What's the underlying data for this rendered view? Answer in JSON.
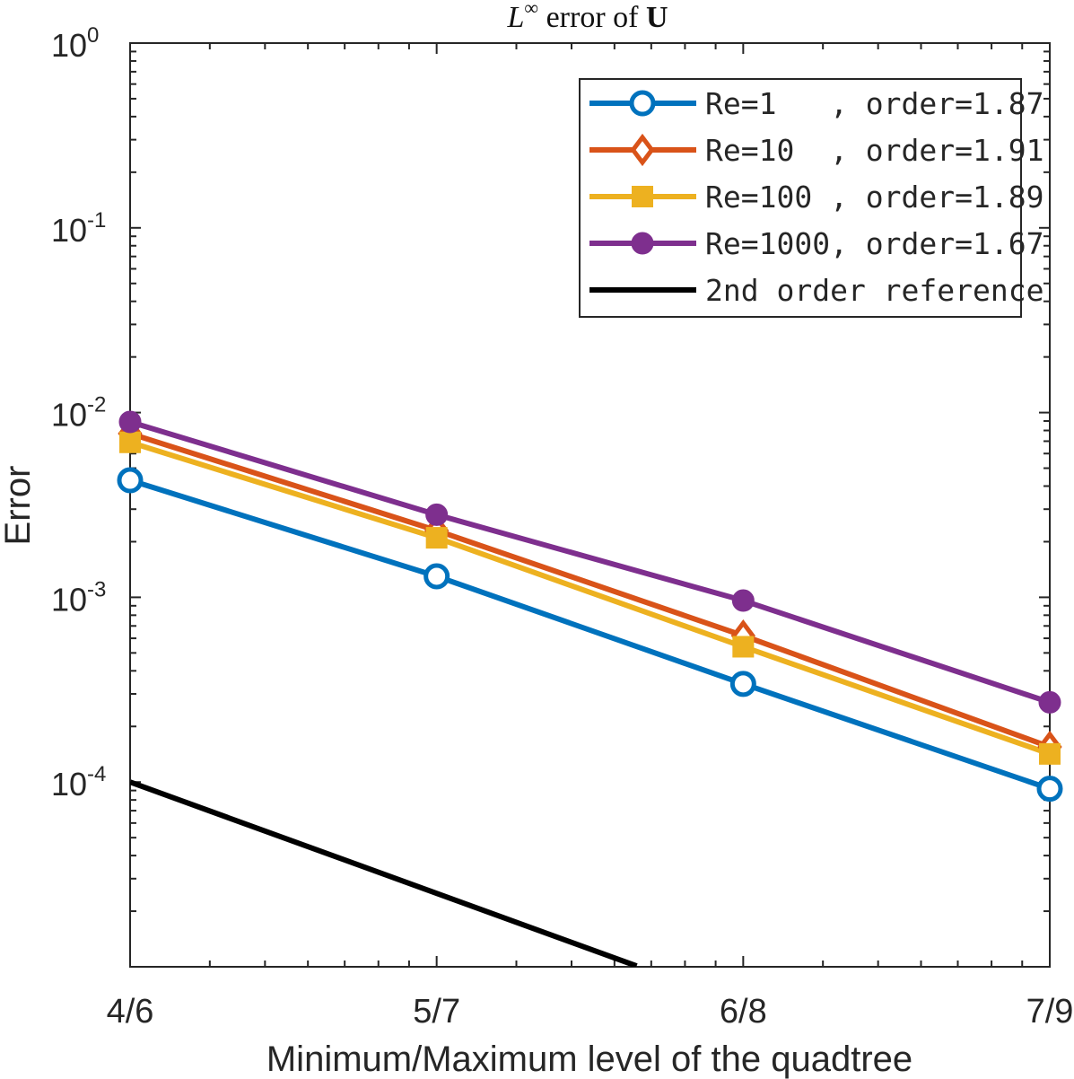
{
  "chart_data": {
    "type": "line",
    "title": {
      "math": "L",
      "superscript": "∞",
      "text": " error of ",
      "bold": "U"
    },
    "xlabel": "Minimum/Maximum level of the quadtree",
    "ylabel": "Error",
    "categories": [
      "4/6",
      "5/7",
      "6/8",
      "7/9"
    ],
    "yscale": "log",
    "ylim": [
      1e-05,
      1
    ],
    "yticks": [
      {
        "base": "10",
        "exp": "-4",
        "value": 0.0001
      },
      {
        "base": "10",
        "exp": "-3",
        "value": 0.001
      },
      {
        "base": "10",
        "exp": "-2",
        "value": 0.01
      },
      {
        "base": "10",
        "exp": "-1",
        "value": 0.1
      },
      {
        "base": "10",
        "exp": "0",
        "value": 1
      }
    ],
    "grid": false,
    "legend_position": "top-right",
    "series": [
      {
        "name": "Re=1   , order=1.87",
        "color": "#0072BD",
        "marker": "circle",
        "values": [
          0.0043,
          0.0013,
          0.00034,
          9.2e-05
        ]
      },
      {
        "name": "Re=10  , order=1.91",
        "color": "#D95319",
        "marker": "diamond",
        "values": [
          0.0077,
          0.0023,
          0.00062,
          0.000155
        ]
      },
      {
        "name": "Re=100 , order=1.89",
        "color": "#EDB120",
        "marker": "square",
        "values": [
          0.0069,
          0.0021,
          0.00054,
          0.000142
        ]
      },
      {
        "name": "Re=1000, order=1.67",
        "color": "#7E2F8E",
        "marker": "filled-circle",
        "values": [
          0.0089,
          0.0028,
          0.00096,
          0.00027
        ]
      },
      {
        "name": "2nd order reference",
        "color": "#000000",
        "marker": "none",
        "x": [
          0,
          1.6524
        ],
        "values": [
          0.0001,
          1.01e-05
        ]
      }
    ]
  }
}
